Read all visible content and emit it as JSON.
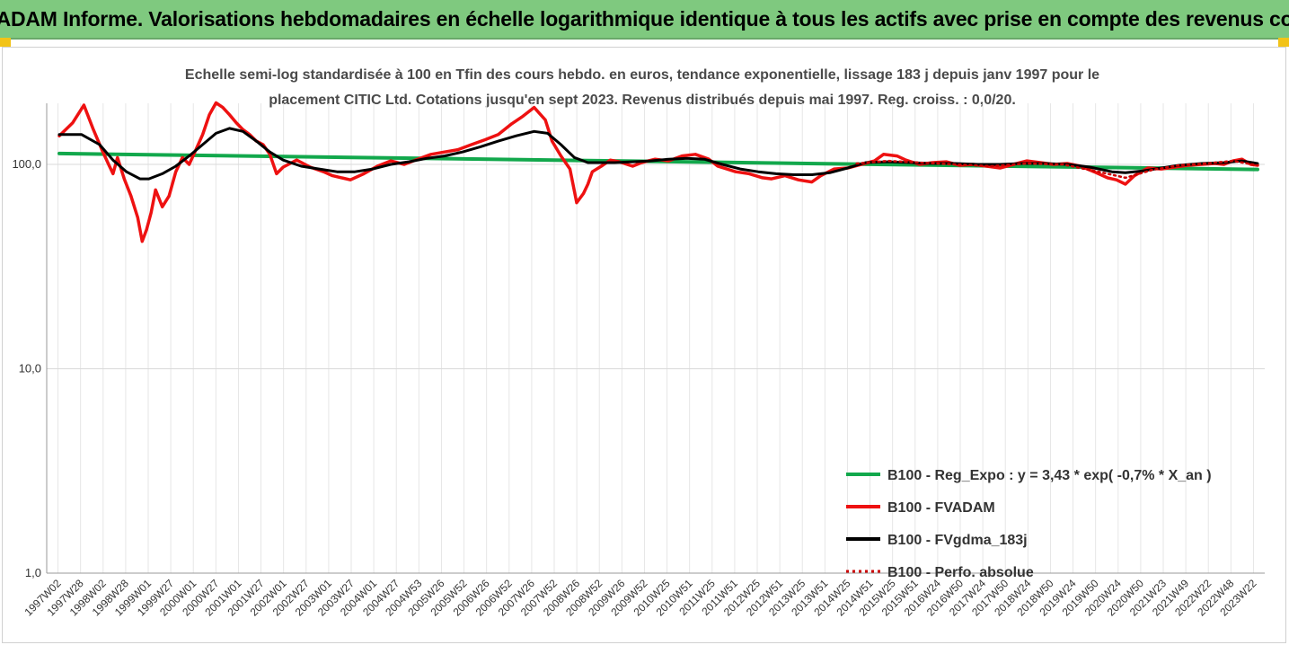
{
  "header": {
    "banner_title": "ADAM Informe. Valorisations hebdomadaires en échelle logarithmique identique à tous les actifs avec prise en compte des revenus co",
    "banner_color": "#7fc97f",
    "corner_color": "#f2c318"
  },
  "chart_data": {
    "type": "line",
    "title": "Echelle semi-log standardisée à 100 en Tfin des cours hebdo. en euros, tendance exponentielle, lissage 183 j depuis janv 1997 pour le placement CITIC Ltd. Cotations jusqu'en sept 2023. Revenus distribués depuis mai 1997. Reg. croiss. : 0,0/20.",
    "title_lines": [
      "Echelle semi-log standardisée à 100 en Tfin des cours hebdo. en euros, tendance exponentielle, lissage 183 j depuis janv 1997 pour le",
      "placement CITIC Ltd. Cotations jusqu'en sept 2023. Revenus distribués depuis mai 1997. Reg. croiss. : 0,0/20."
    ],
    "y_scale": "log",
    "ylim": [
      1,
      200
    ],
    "y_ticks": [
      1,
      10,
      100
    ],
    "y_tick_labels": [
      "1,0",
      "10,0",
      "100,0"
    ],
    "xlim": [
      1997.0,
      2023.75
    ],
    "x_tick_labels": [
      "1997W02",
      "1997W28",
      "1998W02",
      "1998W28",
      "1999W01",
      "1999W27",
      "2000W01",
      "2000W27",
      "2001W01",
      "2001W27",
      "2002W01",
      "2002W27",
      "2003W01",
      "2003W27",
      "2004W01",
      "2004W27",
      "2004W53",
      "2005W26",
      "2005W52",
      "2006W26",
      "2006W52",
      "2007W26",
      "2007W52",
      "2008W26",
      "2008W52",
      "2009W26",
      "2009W52",
      "2010W25",
      "2010W51",
      "2011W25",
      "2011W51",
      "2012W25",
      "2012W51",
      "2013W25",
      "2013W51",
      "2014W25",
      "2014W51",
      "2015W25",
      "2015W51",
      "2016W24",
      "2016W50",
      "2017W24",
      "2017W50",
      "2018W24",
      "2018W50",
      "2019W24",
      "2019W50",
      "2020W24",
      "2020W50",
      "2021W23",
      "2021W49",
      "2022W22",
      "2022W48",
      "2023W22"
    ],
    "grid": "vertical and horizontal",
    "legend_position": "bottom-right",
    "series": [
      {
        "name": "B100 - Reg_Expo : y = 3,43 * exp( -0,7% *  X_an )",
        "color": "#12a84c",
        "style": "solid",
        "x": [
          1997.0,
          2023.75
        ],
        "values": [
          113,
          94.5
        ]
      },
      {
        "name": "B100 - FVADAM",
        "color": "#ee1111",
        "style": "solid",
        "x": [
          1997.0,
          1997.3,
          1997.55,
          1997.75,
          1997.95,
          1998.1,
          1998.2,
          1998.3,
          1998.45,
          1998.6,
          1998.75,
          1998.85,
          1998.95,
          1999.05,
          1999.15,
          1999.3,
          1999.45,
          1999.6,
          1999.75,
          1999.9,
          2000.05,
          2000.2,
          2000.35,
          2000.5,
          2000.65,
          2000.8,
          2000.95,
          2001.1,
          2001.25,
          2001.4,
          2001.55,
          2001.7,
          2001.85,
          2002.0,
          2002.3,
          2002.6,
          2002.9,
          2003.1,
          2003.3,
          2003.5,
          2003.8,
          2004.1,
          2004.4,
          2004.7,
          2005.0,
          2005.3,
          2005.6,
          2005.9,
          2006.2,
          2006.5,
          2006.8,
          2007.1,
          2007.35,
          2007.6,
          2007.85,
          2008.0,
          2008.2,
          2008.4,
          2008.55,
          2008.7,
          2008.8,
          2008.9,
          2009.1,
          2009.3,
          2009.5,
          2009.8,
          2010.0,
          2010.3,
          2010.6,
          2010.9,
          2011.2,
          2011.5,
          2011.7,
          2011.9,
          2012.1,
          2012.4,
          2012.7,
          2012.9,
          2013.2,
          2013.5,
          2013.8,
          2014.0,
          2014.3,
          2014.6,
          2014.9,
          2015.2,
          2015.4,
          2015.7,
          2015.9,
          2016.2,
          2016.5,
          2016.8,
          2017.1,
          2017.4,
          2017.7,
          2018.0,
          2018.3,
          2018.6,
          2018.9,
          2019.2,
          2019.5,
          2019.8,
          2020.1,
          2020.4,
          2020.6,
          2020.8,
          2021.0,
          2021.3,
          2021.6,
          2021.9,
          2022.2,
          2022.5,
          2022.8,
          2023.0,
          2023.2,
          2023.4,
          2023.6,
          2023.75
        ],
        "values": [
          138,
          160,
          195,
          150,
          118,
          100,
          90,
          108,
          85,
          70,
          55,
          42,
          48,
          58,
          75,
          62,
          70,
          92,
          108,
          100,
          118,
          140,
          175,
          200,
          190,
          175,
          160,
          148,
          140,
          130,
          125,
          112,
          90,
          97,
          105,
          97,
          92,
          88,
          86,
          84,
          90,
          98,
          104,
          100,
          106,
          112,
          115,
          118,
          125,
          132,
          140,
          158,
          172,
          190,
          165,
          130,
          110,
          95,
          65,
          72,
          80,
          92,
          98,
          105,
          103,
          98,
          102,
          106,
          104,
          110,
          112,
          106,
          98,
          95,
          92,
          90,
          86,
          85,
          88,
          84,
          82,
          88,
          95,
          96,
          100,
          104,
          112,
          110,
          105,
          100,
          102,
          103,
          99,
          100,
          98,
          96,
          100,
          104,
          102,
          100,
          101,
          98,
          92,
          86,
          84,
          80,
          88,
          96,
          95,
          97,
          99,
          100,
          101,
          100,
          104,
          106,
          100,
          99
        ]
      },
      {
        "name": "B100 - FVgdma_183j",
        "color": "#000000",
        "style": "solid",
        "x": [
          1997.0,
          1997.5,
          1997.9,
          1998.2,
          1998.5,
          1998.8,
          1999.0,
          1999.3,
          1999.6,
          1999.9,
          2000.2,
          2000.5,
          2000.8,
          2001.1,
          2001.4,
          2001.7,
          2002.0,
          2002.4,
          2002.8,
          2003.2,
          2003.6,
          2004.0,
          2004.4,
          2004.8,
          2005.2,
          2005.6,
          2006.0,
          2006.4,
          2006.8,
          2007.2,
          2007.6,
          2007.9,
          2008.2,
          2008.5,
          2008.8,
          2009.1,
          2009.4,
          2009.8,
          2010.2,
          2010.6,
          2011.0,
          2011.4,
          2011.8,
          2012.2,
          2012.6,
          2013.0,
          2013.4,
          2013.8,
          2014.2,
          2014.6,
          2015.0,
          2015.5,
          2016.0,
          2016.5,
          2017.0,
          2017.5,
          2018.0,
          2018.5,
          2019.0,
          2019.5,
          2020.0,
          2020.5,
          2020.8,
          2021.2,
          2021.6,
          2022.0,
          2022.5,
          2023.0,
          2023.4,
          2023.75
        ],
        "values": [
          140,
          140,
          125,
          105,
          92,
          85,
          85,
          90,
          98,
          110,
          125,
          142,
          150,
          145,
          130,
          115,
          105,
          98,
          95,
          92,
          92,
          95,
          100,
          103,
          107,
          110,
          115,
          122,
          130,
          138,
          145,
          142,
          125,
          108,
          102,
          102,
          102,
          103,
          104,
          106,
          107,
          106,
          100,
          95,
          92,
          90,
          89,
          89,
          91,
          96,
          102,
          103,
          102,
          101,
          101,
          100,
          100,
          101,
          101,
          100,
          97,
          92,
          91,
          93,
          96,
          99,
          101,
          102,
          104,
          101
        ]
      },
      {
        "name": "B100 - Perfo. absolue",
        "color": "#cc0000",
        "style": "dotted",
        "x": [
          2014.8,
          2015.5,
          2016.2,
          2017.0,
          2017.8,
          2018.6,
          2019.4,
          2020.2,
          2020.8,
          2021.4,
          2022.0,
          2022.6,
          2023.2,
          2023.75
        ],
        "values": [
          101,
          104,
          102,
          100,
          98,
          101,
          100,
          92,
          86,
          94,
          99,
          101,
          104,
          99
        ]
      }
    ]
  }
}
